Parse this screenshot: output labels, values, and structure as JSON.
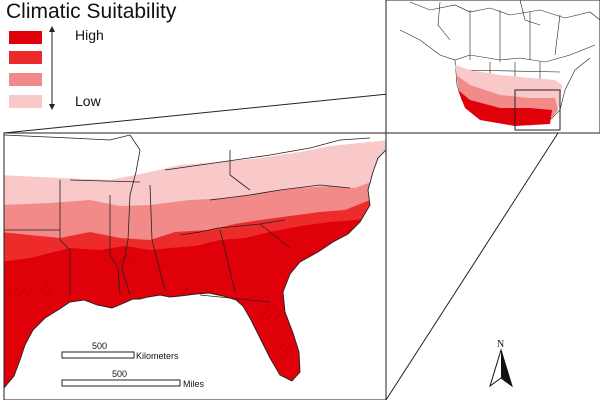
{
  "legend": {
    "title": "Climatic Suitability",
    "high_label": "High",
    "low_label": "Low",
    "classes": [
      {
        "level": "high",
        "color": "#e0000a"
      },
      {
        "level": "upper-middle",
        "color": "#ee2b2b"
      },
      {
        "level": "lower-middle",
        "color": "#f28a8a"
      },
      {
        "level": "low",
        "color": "#f9c8c8"
      }
    ]
  },
  "scale_bar_km": {
    "value": "500",
    "unit": "Kilometers"
  },
  "scale_bar_mi": {
    "value": "500",
    "unit": "Miles"
  },
  "north_arrow": {
    "label": "N"
  },
  "colors": {
    "high": "#e0000a",
    "upper_middle": "#ee2b2b",
    "lower_middle": "#f28a8a",
    "low": "#f9c8c8",
    "water": "#ffffff",
    "borders": "#222222"
  }
}
